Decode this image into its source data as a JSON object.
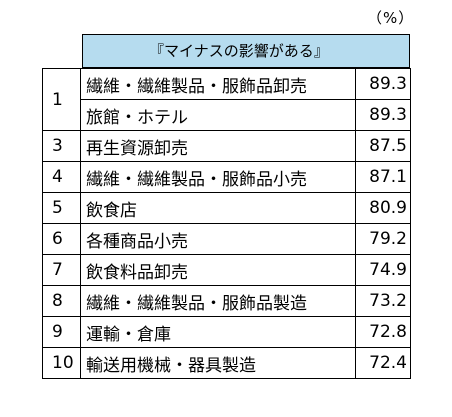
{
  "unit_label": "（%）",
  "header": "『マイナスの影響がある』",
  "rows": [
    {
      "rank": "1",
      "industry": "繊維・繊維製品・服飾品卸売",
      "value": "89.3"
    },
    {
      "rank": "",
      "industry": "旅館・ホテル",
      "value": "89.3"
    },
    {
      "rank": "3",
      "industry": "再生資源卸売",
      "value": "87.5"
    },
    {
      "rank": "4",
      "industry": "繊維・繊維製品・服飾品小売",
      "value": "87.1"
    },
    {
      "rank": "5",
      "industry": "飲食店",
      "value": "80.9"
    },
    {
      "rank": "6",
      "industry": "各種商品小売",
      "value": "79.2"
    },
    {
      "rank": "7",
      "industry": "飲食料品卸売",
      "value": "74.9"
    },
    {
      "rank": "8",
      "industry": "繊維・繊維製品・服飾品製造",
      "value": "73.2"
    },
    {
      "rank": "9",
      "industry": "運輸・倉庫",
      "value": "72.8"
    },
    {
      "rank": "10",
      "industry": "輸送用機械・器具製造",
      "value": "72.4"
    }
  ]
}
